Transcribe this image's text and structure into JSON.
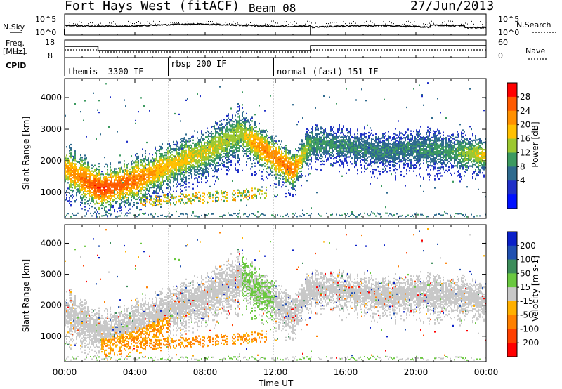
{
  "header": {
    "station": "Fort Hays West (fitACF)",
    "beam": "Beam 08",
    "date": "27/Jun/2013"
  },
  "left_labels": {
    "nsky": "N.Sky",
    "freq": "Freq.",
    "freq_unit": "[MHz]",
    "cpid": "CPID"
  },
  "right_labels": {
    "nsearch": "N.Search",
    "nave": "Nave"
  },
  "noise_axis": {
    "left_ticks": [
      "10^5",
      "10^0"
    ],
    "right_ticks": [
      "10^5",
      "10^0"
    ]
  },
  "freq_axis": {
    "left_ticks": [
      "18",
      "8"
    ],
    "right_ticks": [
      "60",
      "0"
    ]
  },
  "cpid_segments": [
    "themis -3300 IF",
    "rbsp 200 IF",
    "normal (fast) 151 IF"
  ],
  "colorbars": {
    "power": {
      "label": "Power [dB]",
      "ticks": [
        "28",
        "24",
        "20",
        "16",
        "12",
        "8",
        "4"
      ],
      "colors": [
        "#ff0000",
        "#ff5a00",
        "#ff9000",
        "#ffc000",
        "#9cc830",
        "#3c9a60",
        "#2e6a8e",
        "#2030c8",
        "#0010ff"
      ]
    },
    "velocity": {
      "label": "Velocity [m s-1]",
      "ticks": [
        "200",
        "100",
        "50",
        "15",
        "-15",
        "-50",
        "-100",
        "-200"
      ],
      "colors": [
        "#0a20c8",
        "#2050b0",
        "#3c8c5a",
        "#6ac840",
        "#c8c8c8",
        "#ffb000",
        "#ff8000",
        "#ff4000",
        "#ff0000"
      ]
    }
  },
  "chart_data": [
    {
      "type": "heatmap",
      "title": "Power",
      "xlabel": "Time UT",
      "ylabel": "Slant Range [km]",
      "x_ticks": [
        "00:00",
        "04:00",
        "08:00",
        "12:00",
        "16:00",
        "20:00",
        "00:00"
      ],
      "y_ticks": [
        "1000",
        "2000",
        "3000",
        "4000"
      ],
      "xlim_hours": [
        0,
        24
      ],
      "ylim_km": [
        180,
        4600
      ],
      "scatter_bands_km_by_hour": [
        {
          "hour": 0,
          "center": 1800,
          "width": 300,
          "power": 20
        },
        {
          "hour": 2,
          "center": 1100,
          "width": 300,
          "power": 28
        },
        {
          "hour": 4,
          "center": 1400,
          "width": 300,
          "power": 24
        },
        {
          "hour": 6,
          "center": 1900,
          "width": 300,
          "power": 18
        },
        {
          "hour": 8,
          "center": 2300,
          "width": 300,
          "power": 16
        },
        {
          "hour": 10,
          "center": 2900,
          "width": 350,
          "power": 14
        },
        {
          "hour": 11,
          "center": 2500,
          "width": 300,
          "power": 22
        },
        {
          "hour": 13,
          "center": 1700,
          "width": 250,
          "power": 24
        },
        {
          "hour": 14,
          "center": 2600,
          "width": 250,
          "power": 10
        },
        {
          "hour": 16,
          "center": 2500,
          "width": 250,
          "power": 8
        },
        {
          "hour": 18,
          "center": 2300,
          "width": 250,
          "power": 8
        },
        {
          "hour": 20,
          "center": 2400,
          "width": 250,
          "power": 8
        },
        {
          "hour": 22,
          "center": 2300,
          "width": 250,
          "power": 10
        },
        {
          "hour": 24,
          "center": 2200,
          "width": 250,
          "power": 18
        }
      ],
      "colorbar": "power"
    },
    {
      "type": "heatmap",
      "title": "Velocity",
      "xlabel": "Time UT",
      "ylabel": "Slant Range [km]",
      "x_ticks": [
        "00:00",
        "04:00",
        "08:00",
        "12:00",
        "16:00",
        "20:00",
        "00:00"
      ],
      "y_ticks": [
        "1000",
        "2000",
        "3000",
        "4000"
      ],
      "xlim_hours": [
        0,
        24
      ],
      "ylim_km": [
        180,
        4600
      ],
      "colorbar": "velocity"
    }
  ]
}
